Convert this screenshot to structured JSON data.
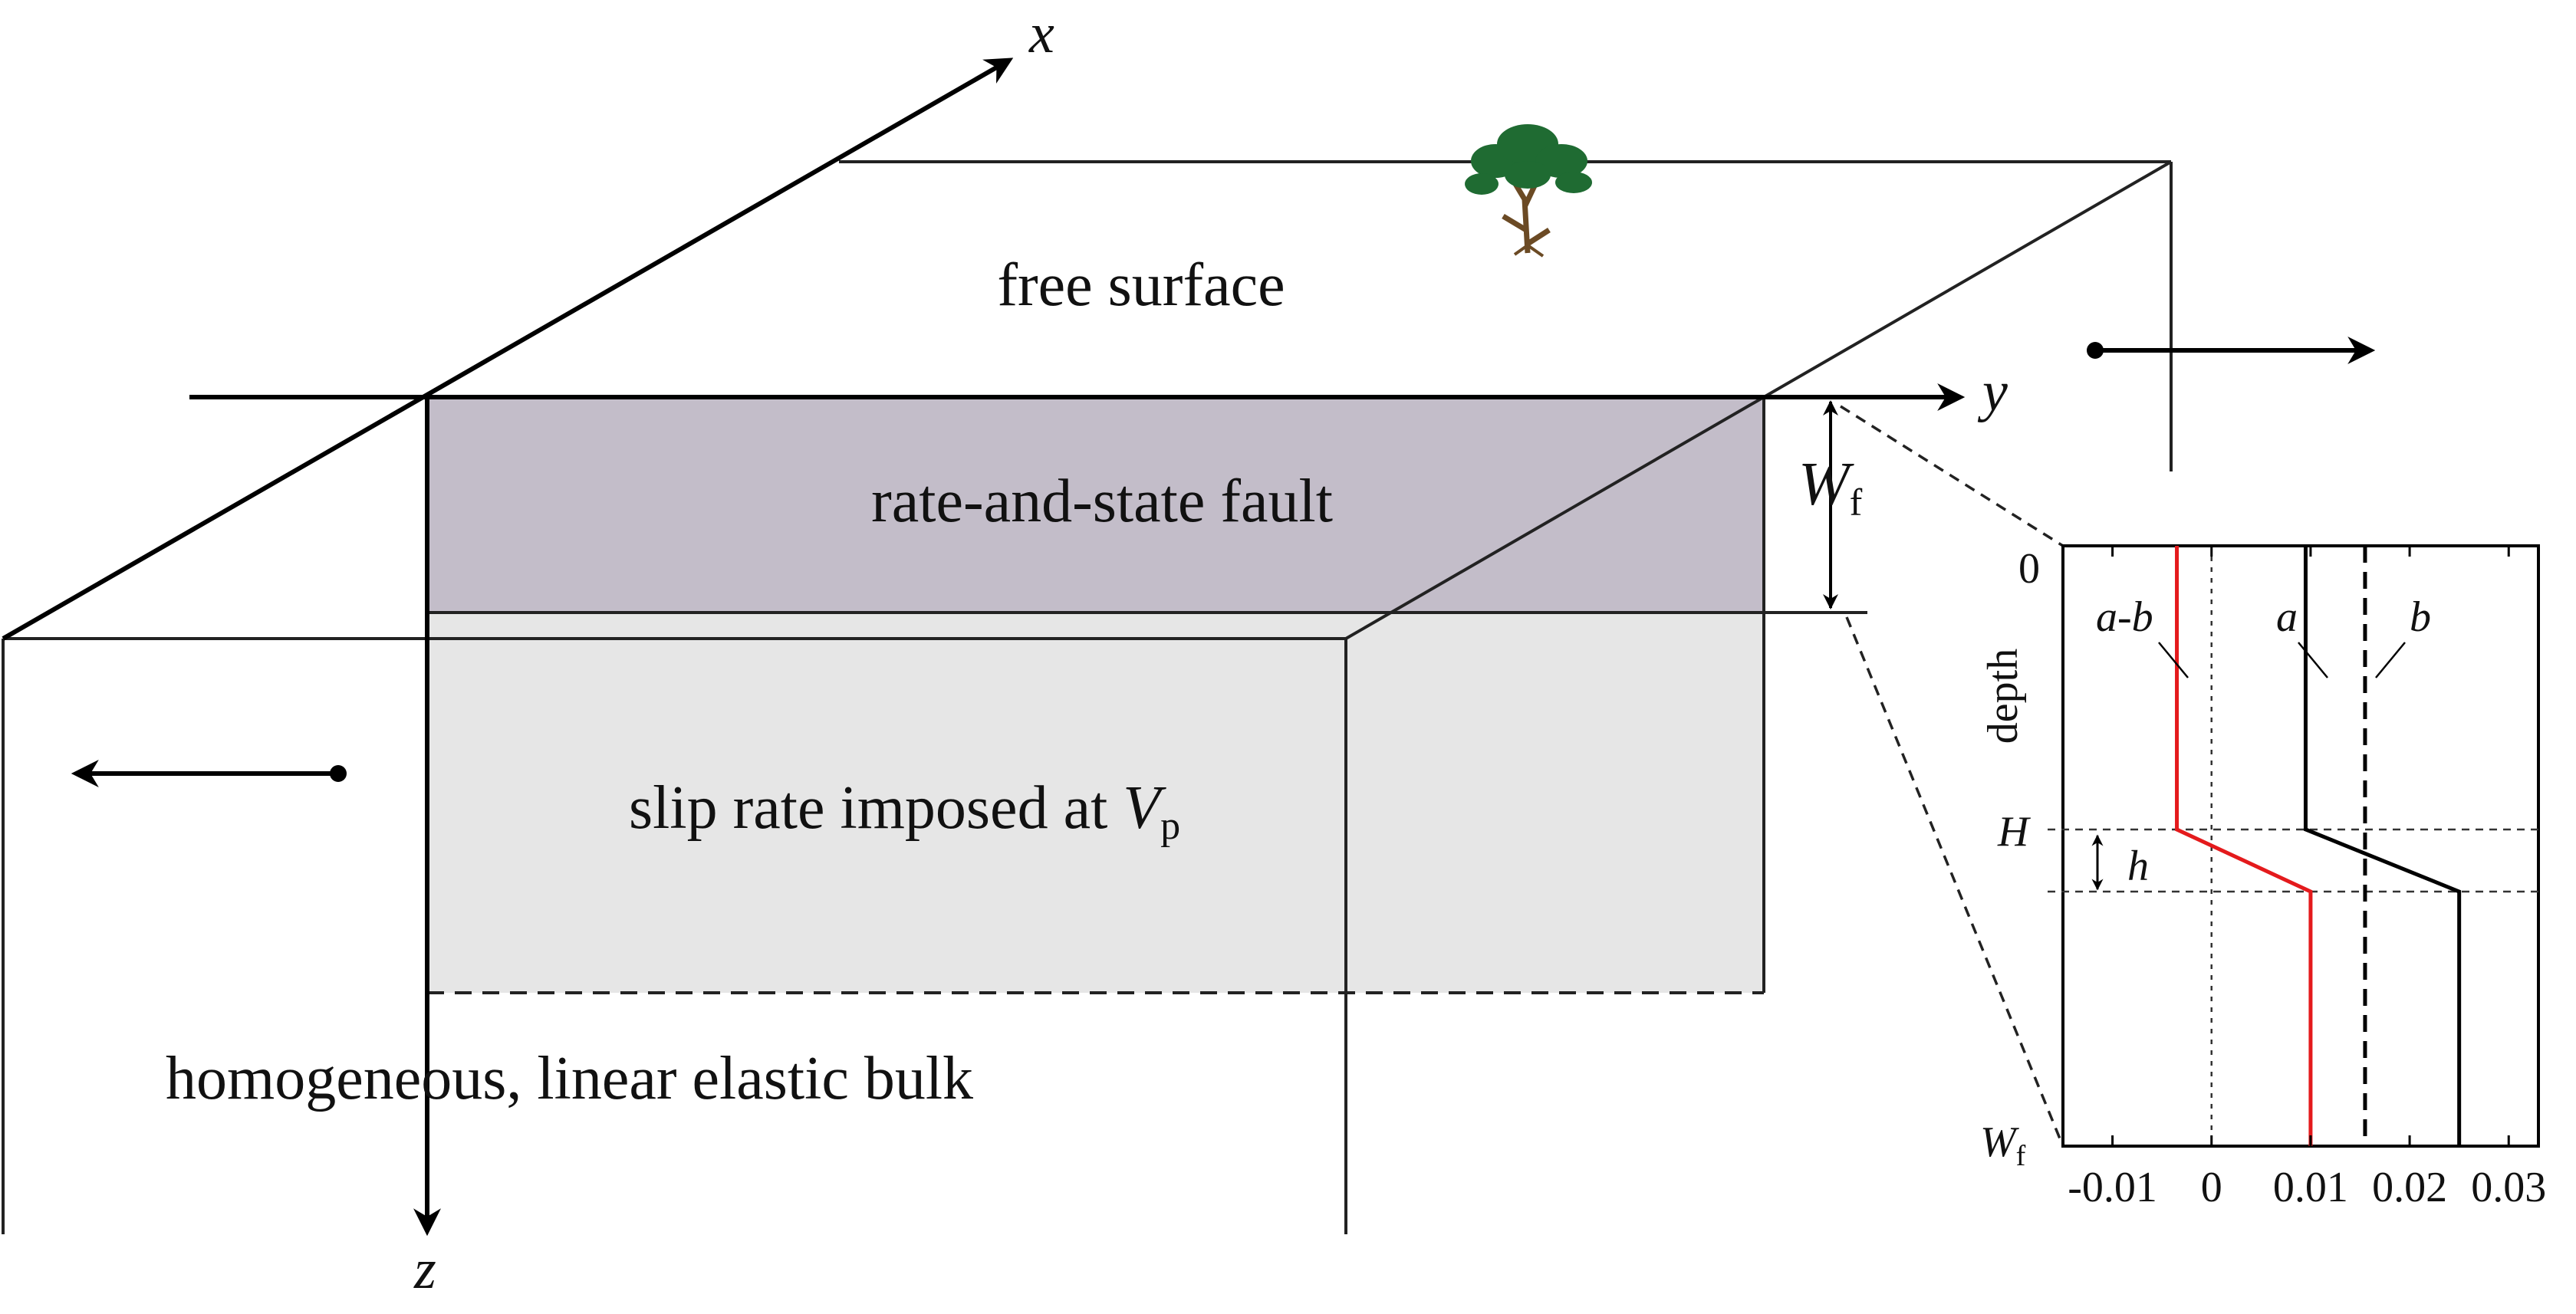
{
  "labels": {
    "free_surface": "free surface",
    "fault": "rate-and-state fault",
    "slip": "slip rate imposed at ",
    "slip_var": "V",
    "slip_sub": "p",
    "bulk": "homogeneous, linear elastic bulk",
    "axis_x": "x",
    "axis_y": "y",
    "axis_z": "z",
    "wf_var": "W",
    "wf_sub": "f"
  },
  "inset": {
    "ylabel": "depth",
    "y_ticks": {
      "top": "0",
      "H": "H",
      "bottom_var": "W",
      "bottom_sub": "f"
    },
    "h_label": "h",
    "curve_labels": {
      "a_minus_b": "a-b",
      "a": "a",
      "b": "b"
    },
    "x_ticks": [
      "-0.01",
      "0",
      "0.01",
      "0.02",
      "0.03"
    ]
  },
  "chart_data": {
    "type": "line",
    "xlabel": "",
    "ylabel": "depth",
    "xlim": [
      -0.015,
      0.033
    ],
    "x_ticks": [
      -0.01,
      0,
      0.01,
      0.02,
      0.03
    ],
    "y_ticks": [
      "0",
      "H",
      "Wf"
    ],
    "series": [
      {
        "name": "a-b",
        "color": "#e41a1c",
        "style": "solid",
        "points": [
          [
            "0",
            -0.0035
          ],
          [
            "H",
            -0.0035
          ],
          [
            "H+h",
            0.01
          ],
          [
            "Wf",
            0.01
          ]
        ]
      },
      {
        "name": "a",
        "color": "#000000",
        "style": "solid",
        "points": [
          [
            "0",
            0.0095
          ],
          [
            "H",
            0.0095
          ],
          [
            "H+h",
            0.025
          ],
          [
            "Wf",
            0.025
          ]
        ]
      },
      {
        "name": "b",
        "color": "#000000",
        "style": "dashed",
        "points": [
          [
            "0",
            0.0155
          ],
          [
            "Wf",
            0.0155
          ]
        ]
      }
    ]
  },
  "colors": {
    "fault_fill": "#c3bdc9",
    "slip_fill": "#e6e6e6",
    "a_minus_b": "#e41a1c",
    "tree_foliage": "#1f6b32",
    "tree_trunk": "#6b4a24"
  }
}
